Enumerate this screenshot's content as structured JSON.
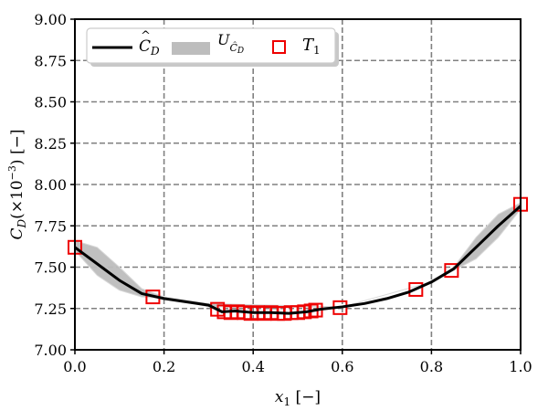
{
  "chart_data": {
    "type": "line",
    "title": "",
    "xlabel": "x_1 [−]",
    "ylabel": "C_D(×10^−3) [−]",
    "xlim": [
      0.0,
      1.0
    ],
    "ylim": [
      7.0,
      9.0
    ],
    "xticks": [
      "0.0",
      "0.2",
      "0.4",
      "0.6",
      "0.8",
      "1.0"
    ],
    "yticks": [
      "7.00",
      "7.25",
      "7.50",
      "7.75",
      "8.00",
      "8.25",
      "8.50",
      "8.75",
      "9.00"
    ],
    "grid": true,
    "legend_position": "upper left",
    "legend": [
      "Ĉ_D",
      "U_Ĉ_D",
      "T_1"
    ],
    "series": [
      {
        "name": "Ĉ_D",
        "kind": "line",
        "color": "#000000",
        "x": [
          0.0,
          0.05,
          0.1,
          0.15,
          0.2,
          0.25,
          0.3,
          0.33,
          0.36,
          0.4,
          0.44,
          0.48,
          0.52,
          0.55,
          0.6,
          0.65,
          0.7,
          0.75,
          0.8,
          0.85,
          0.9,
          0.95,
          1.0
        ],
        "y": [
          7.62,
          7.52,
          7.42,
          7.34,
          7.31,
          7.29,
          7.27,
          7.23,
          7.235,
          7.225,
          7.225,
          7.22,
          7.23,
          7.245,
          7.26,
          7.28,
          7.31,
          7.35,
          7.41,
          7.49,
          7.62,
          7.75,
          7.87
        ]
      },
      {
        "name": "U_Ĉ_D",
        "kind": "band",
        "color": "#bdbdbd",
        "x": [
          0.0,
          0.05,
          0.1,
          0.15,
          0.2,
          0.25,
          0.3,
          0.6,
          0.8,
          0.85,
          0.9,
          0.95,
          1.0
        ],
        "lower": [
          7.6,
          7.45,
          7.36,
          7.32,
          7.31,
          7.29,
          7.26,
          7.26,
          7.41,
          7.48,
          7.55,
          7.68,
          7.85
        ],
        "upper": [
          7.66,
          7.62,
          7.5,
          7.37,
          7.32,
          7.3,
          7.28,
          7.26,
          7.41,
          7.5,
          7.68,
          7.82,
          7.89
        ]
      },
      {
        "name": "T_1",
        "kind": "scatter",
        "marker": "square-open",
        "color": "#ee0000",
        "x": [
          0.0,
          0.175,
          0.32,
          0.335,
          0.35,
          0.365,
          0.38,
          0.395,
          0.41,
          0.425,
          0.44,
          0.455,
          0.47,
          0.485,
          0.5,
          0.515,
          0.53,
          0.54,
          0.595,
          0.765,
          0.845,
          1.0
        ],
        "y": [
          7.62,
          7.32,
          7.245,
          7.23,
          7.225,
          7.23,
          7.225,
          7.22,
          7.225,
          7.22,
          7.225,
          7.22,
          7.22,
          7.225,
          7.225,
          7.23,
          7.235,
          7.24,
          7.255,
          7.365,
          7.48,
          7.88
        ]
      }
    ]
  },
  "labels": {
    "xlabel_main": "x",
    "xlabel_sub": "1",
    "xlabel_unit": "[−]",
    "ylabel_main": "C",
    "ylabel_sub": "D",
    "ylabel_mid": "(×10",
    "ylabel_exp": "−3",
    "ylabel_end": ") [−]",
    "legend_line_label": "C",
    "legend_line_sub": "D",
    "legend_band_label": "U",
    "legend_band_sub": "Ĉ",
    "legend_band_subsub": "D",
    "legend_marker_label": "T",
    "legend_marker_sub": "1"
  }
}
